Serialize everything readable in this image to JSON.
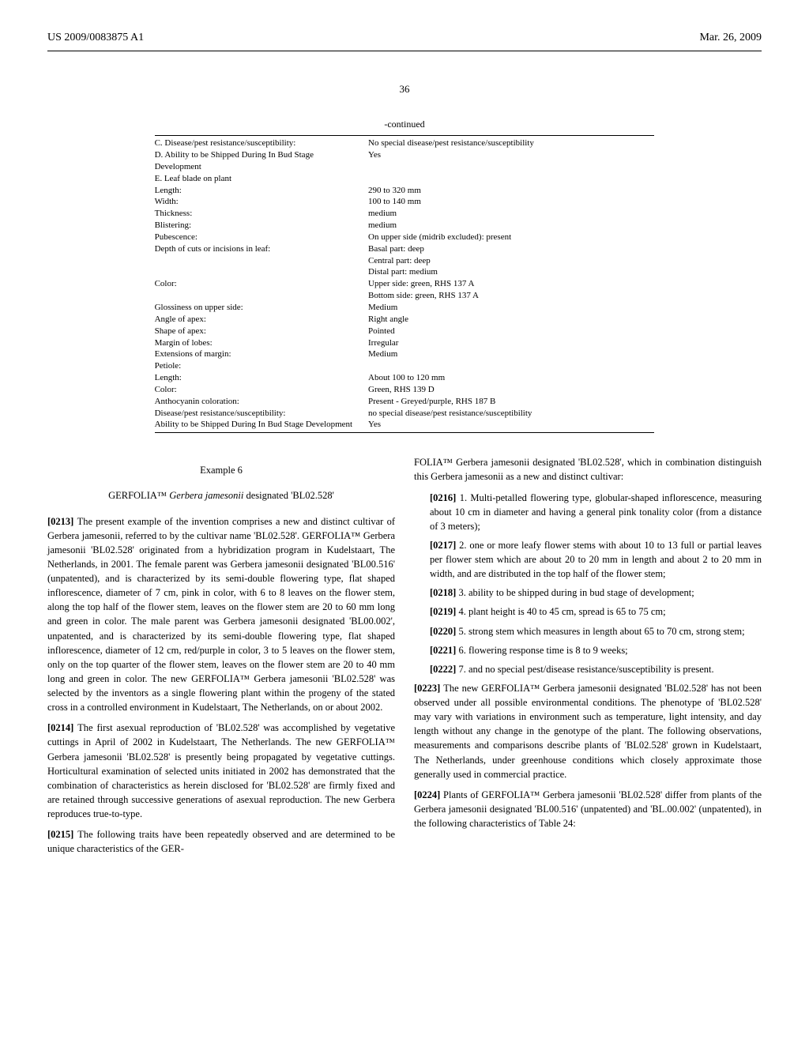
{
  "header": {
    "pub_number": "US 2009/0083875 A1",
    "date": "Mar. 26, 2009"
  },
  "page_number": "36",
  "continued_label": "-continued",
  "table_rows": [
    {
      "label": "C. Disease/pest resistance/susceptibility:",
      "value": "No special disease/pest resistance/susceptibility"
    },
    {
      "label": "D. Ability to be Shipped During In Bud Stage Development",
      "value": "Yes"
    },
    {
      "label": "E. Leaf blade on plant",
      "value": ""
    },
    {
      "label": "",
      "value": ""
    },
    {
      "label": "Length:",
      "value": "290 to 320 mm"
    },
    {
      "label": "Width:",
      "value": "100 to 140 mm"
    },
    {
      "label": "Thickness:",
      "value": "medium"
    },
    {
      "label": "Blistering:",
      "value": "medium"
    },
    {
      "label": "Pubescence:",
      "value": "On upper side (midrib excluded): present"
    },
    {
      "label": "Depth of cuts or incisions in leaf:",
      "value": "Basal part: deep"
    },
    {
      "label": "",
      "value": "Central part: deep"
    },
    {
      "label": "",
      "value": "Distal part: medium"
    },
    {
      "label": "Color:",
      "value": "Upper side: green, RHS 137 A"
    },
    {
      "label": "",
      "value": "Bottom side: green, RHS 137 A"
    },
    {
      "label": "Glossiness on upper side:",
      "value": "Medium"
    },
    {
      "label": "Angle of apex:",
      "value": "Right angle"
    },
    {
      "label": "Shape of apex:",
      "value": "Pointed"
    },
    {
      "label": "Margin of lobes:",
      "value": "Irregular"
    },
    {
      "label": "Extensions of margin:",
      "value": "Medium"
    },
    {
      "label": "Petiole:",
      "value": ""
    },
    {
      "label": "Length:",
      "value": "About 100 to 120 mm"
    },
    {
      "label": "Color:",
      "value": "Green, RHS 139 D"
    },
    {
      "label": "Anthocyanin coloration:",
      "value": "Present - Greyed/purple, RHS 187 B"
    },
    {
      "label": "Disease/pest resistance/susceptibility:",
      "value": "no special disease/pest resistance/susceptibility"
    },
    {
      "label": "Ability to be Shipped During In Bud Stage Development",
      "value": "Yes"
    }
  ],
  "example": {
    "number": "Example 6",
    "title_prefix": "GERFOLIA™ ",
    "title_species": "Gerbera jamesonii",
    "title_suffix": " designated 'BL02.528'"
  },
  "left_paragraphs": [
    {
      "num": "[0213]",
      "text": "The present example of the invention comprises a new and distinct cultivar of Gerbera jamesonii, referred to by the cultivar name 'BL02.528'. GERFOLIA™ Gerbera jamesonii 'BL02.528' originated from a hybridization program in Kudelstaart, The Netherlands, in 2001. The female parent was Gerbera jamesonii designated 'BL00.516' (unpatented), and is characterized by its semi-double flowering type, flat shaped inflorescence, diameter of 7 cm, pink in color, with 6 to 8 leaves on the flower stem, along the top half of the flower stem, leaves on the flower stem are 20 to 60 mm long and green in color. The male parent was Gerbera jamesonii designated 'BL00.002', unpatented, and is characterized by its semi-double flowering type, flat shaped inflorescence, diameter of 12 cm, red/purple in color, 3 to 5 leaves on the flower stem, only on the top quarter of the flower stem, leaves on the flower stem are 20 to 40 mm long and green in color. The new GERFOLIA™ Gerbera jamesonii 'BL02.528' was selected by the inventors as a single flowering plant within the progeny of the stated cross in a controlled environment in Kudelstaart, The Netherlands, on or about 2002."
    },
    {
      "num": "[0214]",
      "text": "The first asexual reproduction of 'BL02.528' was accomplished by vegetative cuttings in April of 2002 in Kudelstaart, The Netherlands. The new GERFOLIA™ Gerbera jamesonii 'BL02.528' is presently being propagated by vegetative cuttings. Horticultural examination of selected units initiated in 2002 has demonstrated that the combination of characteristics as herein disclosed for 'BL02.528' are firmly fixed and are retained through successive generations of asexual reproduction. The new Gerbera reproduces true-to-type."
    },
    {
      "num": "[0215]",
      "text": "The following traits have been repeatedly observed and are determined to be unique characteristics of the GER-"
    }
  ],
  "right_intro": "FOLIA™ Gerbera jamesonii designated 'BL02.528', which in combination distinguish this Gerbera jamesonii as a new and distinct cultivar:",
  "right_list": [
    {
      "num": "[0216]",
      "idx": "1.",
      "text": "Multi-petalled flowering type, globular-shaped inflorescence, measuring about 10 cm in diameter and having a general pink tonality color (from a distance of 3 meters);"
    },
    {
      "num": "[0217]",
      "idx": "2.",
      "text": "one or more leafy flower stems with about 10 to 13 full or partial leaves per flower stem which are about 20 to 20 mm in length and about 2 to 20 mm in width, and are distributed in the top half of the flower stem;"
    },
    {
      "num": "[0218]",
      "idx": "3.",
      "text": "ability to be shipped during in bud stage of development;"
    },
    {
      "num": "[0219]",
      "idx": "4.",
      "text": "plant height is 40 to 45 cm, spread is 65 to 75 cm;"
    },
    {
      "num": "[0220]",
      "idx": "5.",
      "text": "strong stem which measures in length about 65 to 70 cm, strong stem;"
    },
    {
      "num": "[0221]",
      "idx": "6.",
      "text": "flowering response time is 8 to 9 weeks;"
    },
    {
      "num": "[0222]",
      "idx": "7.",
      "text": "and no special pest/disease resistance/susceptibility is present."
    }
  ],
  "right_paragraphs": [
    {
      "num": "[0223]",
      "text": "The new GERFOLIA™ Gerbera jamesonii designated 'BL02.528' has not been observed under all possible environmental conditions. The phenotype of 'BL02.528' may vary with variations in environment such as temperature, light intensity, and day length without any change in the genotype of the plant. The following observations, measurements and comparisons describe plants of 'BL02.528' grown in Kudelstaart, The Netherlands, under greenhouse conditions which closely approximate those generally used in commercial practice."
    },
    {
      "num": "[0224]",
      "text": "Plants of GERFOLIA™ Gerbera jamesonii 'BL02.528' differ from plants of the Gerbera jamesonii designated 'BL00.516' (unpatented) and 'BL.00.002' (unpatented), in the following characteristics of Table 24:"
    }
  ]
}
